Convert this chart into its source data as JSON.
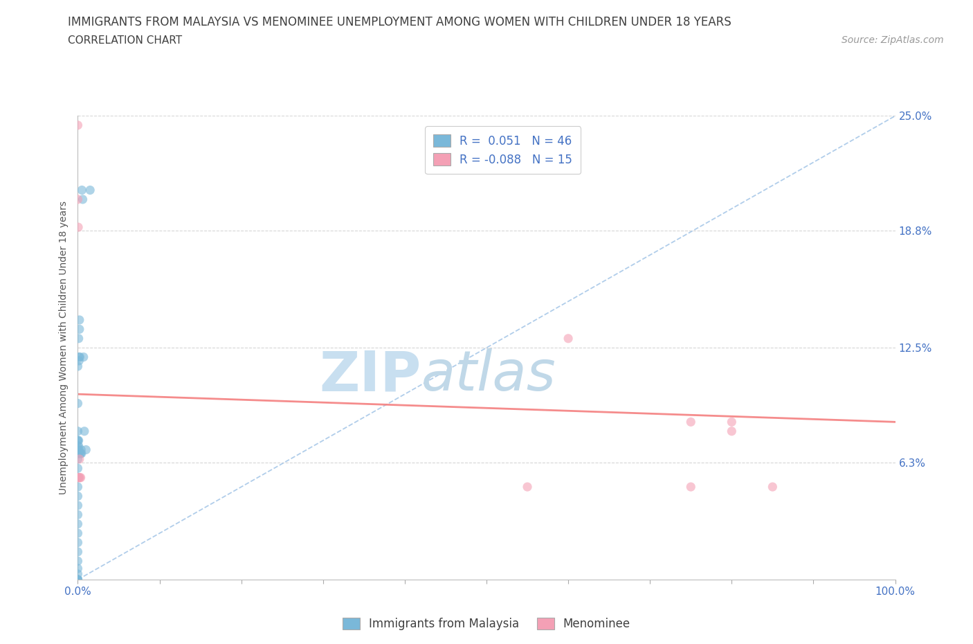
{
  "title": "IMMIGRANTS FROM MALAYSIA VS MENOMINEE UNEMPLOYMENT AMONG WOMEN WITH CHILDREN UNDER 18 YEARS",
  "subtitle": "CORRELATION CHART",
  "source": "Source: ZipAtlas.com",
  "ylabel": "Unemployment Among Women with Children Under 18 years",
  "xlim": [
    0,
    100
  ],
  "ylim": [
    0,
    25
  ],
  "watermark_zip": "ZIP",
  "watermark_atlas": "atlas",
  "blue_R": 0.051,
  "blue_N": 46,
  "pink_R": -0.088,
  "pink_N": 15,
  "blue_scatter_x": [
    0.0,
    0.0,
    0.0,
    0.0,
    0.0,
    0.0,
    0.0,
    0.0,
    0.0,
    0.0,
    0.0,
    0.0,
    0.0,
    0.0,
    0.0,
    0.0,
    0.0,
    0.0,
    0.0,
    0.0,
    0.0,
    0.0,
    0.0,
    0.0,
    0.0,
    0.0,
    0.1,
    0.1,
    0.1,
    0.1,
    0.1,
    0.15,
    0.15,
    0.2,
    0.2,
    0.25,
    0.3,
    0.35,
    0.4,
    0.45,
    0.5,
    0.6,
    0.7,
    0.8,
    1.0,
    1.5
  ],
  "blue_scatter_y": [
    0.0,
    0.0,
    0.0,
    0.3,
    0.6,
    1.0,
    1.5,
    2.0,
    2.5,
    3.0,
    3.5,
    4.0,
    4.5,
    5.0,
    5.5,
    6.0,
    6.5,
    7.0,
    7.5,
    8.0,
    6.8,
    6.8,
    7.2,
    7.5,
    9.5,
    11.5,
    6.8,
    7.0,
    7.2,
    7.5,
    13.0,
    11.8,
    12.0,
    13.5,
    14.0,
    12.0,
    6.8,
    6.8,
    7.0,
    6.8,
    21.0,
    20.5,
    12.0,
    8.0,
    7.0,
    21.0
  ],
  "pink_scatter_x": [
    0.0,
    0.0,
    0.05,
    0.1,
    0.15,
    0.2,
    0.25,
    0.35,
    55.0,
    60.0,
    75.0,
    75.0,
    80.0,
    80.0,
    85.0
  ],
  "pink_scatter_y": [
    24.5,
    20.5,
    19.0,
    5.5,
    5.5,
    6.5,
    5.5,
    5.5,
    5.0,
    13.0,
    8.5,
    5.0,
    8.0,
    8.5,
    5.0
  ],
  "blue_line_x": [
    0,
    100
  ],
  "blue_line_y": [
    0,
    25
  ],
  "pink_line_x": [
    0,
    100
  ],
  "pink_line_y": [
    10.0,
    8.5
  ],
  "bg_color": "#ffffff",
  "blue_color": "#7ab8d9",
  "pink_color": "#f4a0b5",
  "blue_line_color": "#a8c8e8",
  "pink_line_color": "#f48080",
  "grid_color": "#cccccc",
  "title_color": "#404040",
  "axis_label_color": "#555555",
  "tick_color": "#4472c4",
  "watermark_color_zip": "#c8dff0",
  "watermark_color_atlas": "#c0d8e8",
  "legend_R_color": "#4472c4",
  "title_fontsize": 12,
  "subtitle_fontsize": 11,
  "ylabel_fontsize": 10,
  "source_fontsize": 10
}
